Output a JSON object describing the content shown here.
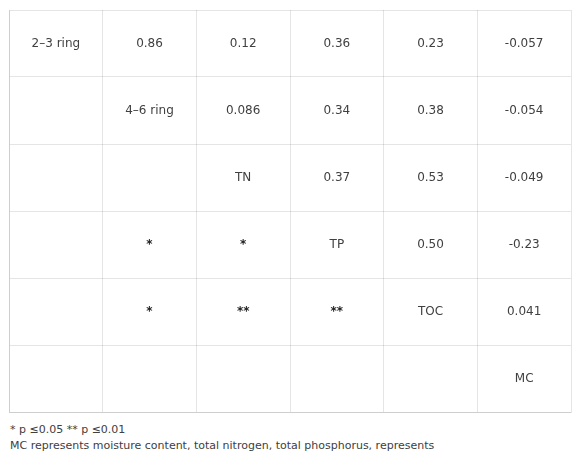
{
  "chart_data": {
    "type": "correlation_matrix",
    "categories": [
      "2–3 ring",
      "4–6 ring",
      "TN",
      "TP",
      "TOC",
      "MC"
    ],
    "values": [
      [
        null,
        0.86,
        0.12,
        0.36,
        0.23,
        -0.057
      ],
      [
        0.86,
        null,
        0.086,
        0.34,
        0.38,
        -0.054
      ],
      [
        0.12,
        0.086,
        null,
        0.37,
        0.53,
        -0.049
      ],
      [
        0.36,
        0.34,
        0.37,
        null,
        0.5,
        -0.23
      ],
      [
        0.23,
        0.38,
        0.53,
        0.5,
        null,
        0.041
      ],
      [
        -0.057,
        -0.054,
        -0.049,
        -0.23,
        0.041,
        null
      ]
    ],
    "value_labels": [
      [
        null,
        "0.86",
        "0.12",
        "0.36",
        "0.23",
        "-0.057"
      ],
      [
        null,
        null,
        "0.086",
        "0.34",
        "0.38",
        "-0.054"
      ],
      [
        null,
        null,
        null,
        "0.37",
        "0.53",
        "-0.049"
      ],
      [
        null,
        null,
        null,
        null,
        "0.50",
        "-0.23"
      ],
      [
        null,
        null,
        null,
        null,
        null,
        "0.041"
      ],
      [
        null,
        null,
        null,
        null,
        null,
        null
      ]
    ],
    "colors": [
      [
        null,
        null,
        null,
        null,
        null,
        null
      ],
      [
        "#e05050",
        null,
        null,
        null,
        null,
        null
      ],
      [
        "#e05050",
        "#e05050",
        null,
        null,
        null,
        null
      ],
      [
        "#e05050",
        "#e05050",
        "#e05050",
        null,
        null,
        null
      ],
      [
        "#e05050",
        "#e05050",
        "#e05050",
        "#e05050",
        null,
        null
      ],
      [
        "#9090cc",
        "#9090cc",
        "#9090cc",
        "#9090cc",
        "#e05050",
        null
      ]
    ],
    "significance": [
      [
        null,
        null,
        null,
        null,
        null,
        null
      ],
      [
        null,
        null,
        null,
        null,
        null,
        null
      ],
      [
        null,
        null,
        null,
        null,
        null,
        null
      ],
      [
        null,
        "*",
        "*",
        null,
        null,
        null
      ],
      [
        null,
        "*",
        "**",
        "**",
        null,
        null
      ],
      [
        null,
        null,
        null,
        null,
        null,
        null
      ]
    ],
    "annotations": [
      "* p ≤0.05  ** p ≤0.01",
      "MC represents moisture content, total nitrogen, total phosphorus, represents"
    ],
    "grid": true,
    "tick_labels": false
  }
}
